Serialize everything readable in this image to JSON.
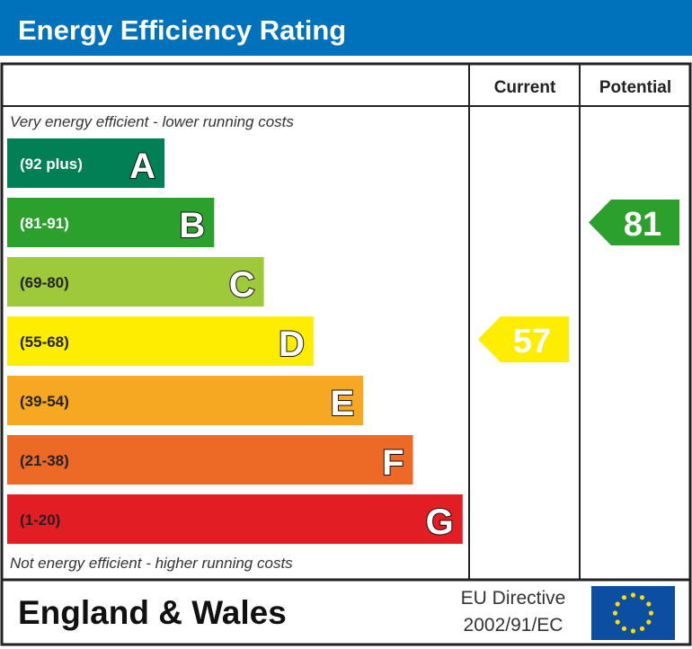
{
  "title": "Energy Efficiency Rating",
  "columns": {
    "current": "Current",
    "potential": "Potential"
  },
  "top_note": "Very energy efficient - lower running costs",
  "bottom_note": "Not energy efficient - higher running costs",
  "footer": {
    "region": "England & Wales",
    "directive_line1": "EU Directive",
    "directive_line2": "2002/91/EC"
  },
  "colors": {
    "header": "#0072bc",
    "eu_flag": "#0b4ea2",
    "eu_stars": "#ffdd00"
  },
  "chart_data": {
    "type": "bar",
    "bands": [
      {
        "letter": "A",
        "range": "(92 plus)",
        "color": "#008054"
      },
      {
        "letter": "B",
        "range": "(81-91)",
        "color": "#2ca02c"
      },
      {
        "letter": "C",
        "range": "(69-80)",
        "color": "#9dc93b"
      },
      {
        "letter": "D",
        "range": "(55-68)",
        "color": "#ffed00"
      },
      {
        "letter": "E",
        "range": "(39-54)",
        "color": "#f7a823"
      },
      {
        "letter": "F",
        "range": "(21-38)",
        "color": "#ec6a25"
      },
      {
        "letter": "G",
        "range": "(1-20)",
        "color": "#e31d24"
      }
    ],
    "current": {
      "value": 57,
      "band": "D",
      "color": "#ffed00"
    },
    "potential": {
      "value": 81,
      "band": "B",
      "color": "#2ca02c"
    }
  }
}
